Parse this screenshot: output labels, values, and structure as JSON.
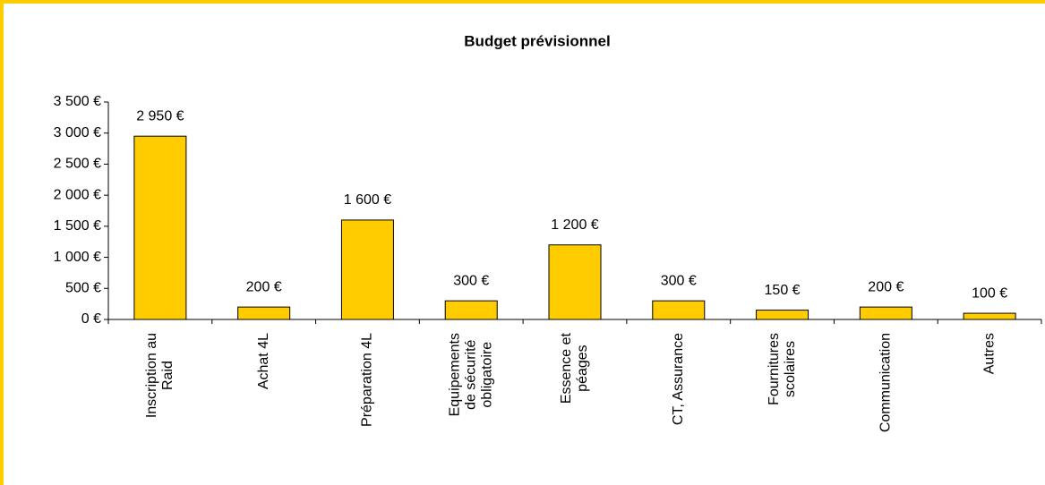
{
  "chart_data": {
    "type": "bar",
    "title": "Budget prévisionnel",
    "categories": [
      [
        "Inscription au",
        "Raid"
      ],
      [
        "Achat 4L"
      ],
      [
        "Préparation 4L"
      ],
      [
        "Equipements",
        "de sécurité",
        "obligatoire"
      ],
      [
        "Essence et",
        "péages"
      ],
      [
        "CT, Assurance"
      ],
      [
        "Fournitures",
        "scolaires"
      ],
      [
        "Communication"
      ],
      [
        "Autres"
      ]
    ],
    "values": [
      2950,
      200,
      1600,
      300,
      1200,
      300,
      150,
      200,
      100
    ],
    "value_labels": [
      "2 950 €",
      "200 €",
      "1 600 €",
      "300 €",
      "1 200 €",
      "300 €",
      "150 €",
      "200 €",
      "100 €"
    ],
    "color": "#ffcc00",
    "ylim": [
      0,
      3500
    ],
    "yticks": [
      {
        "value": 0,
        "label": "0 €"
      },
      {
        "value": 500,
        "label": "500 €"
      },
      {
        "value": 1000,
        "label": "1 000 €"
      },
      {
        "value": 1500,
        "label": "1 500 €"
      },
      {
        "value": 2000,
        "label": "2 000 €"
      },
      {
        "value": 2500,
        "label": "2 500 €"
      },
      {
        "value": 3000,
        "label": "3 000 €"
      },
      {
        "value": 3500,
        "label": "3 500 €"
      }
    ],
    "grid": false
  }
}
